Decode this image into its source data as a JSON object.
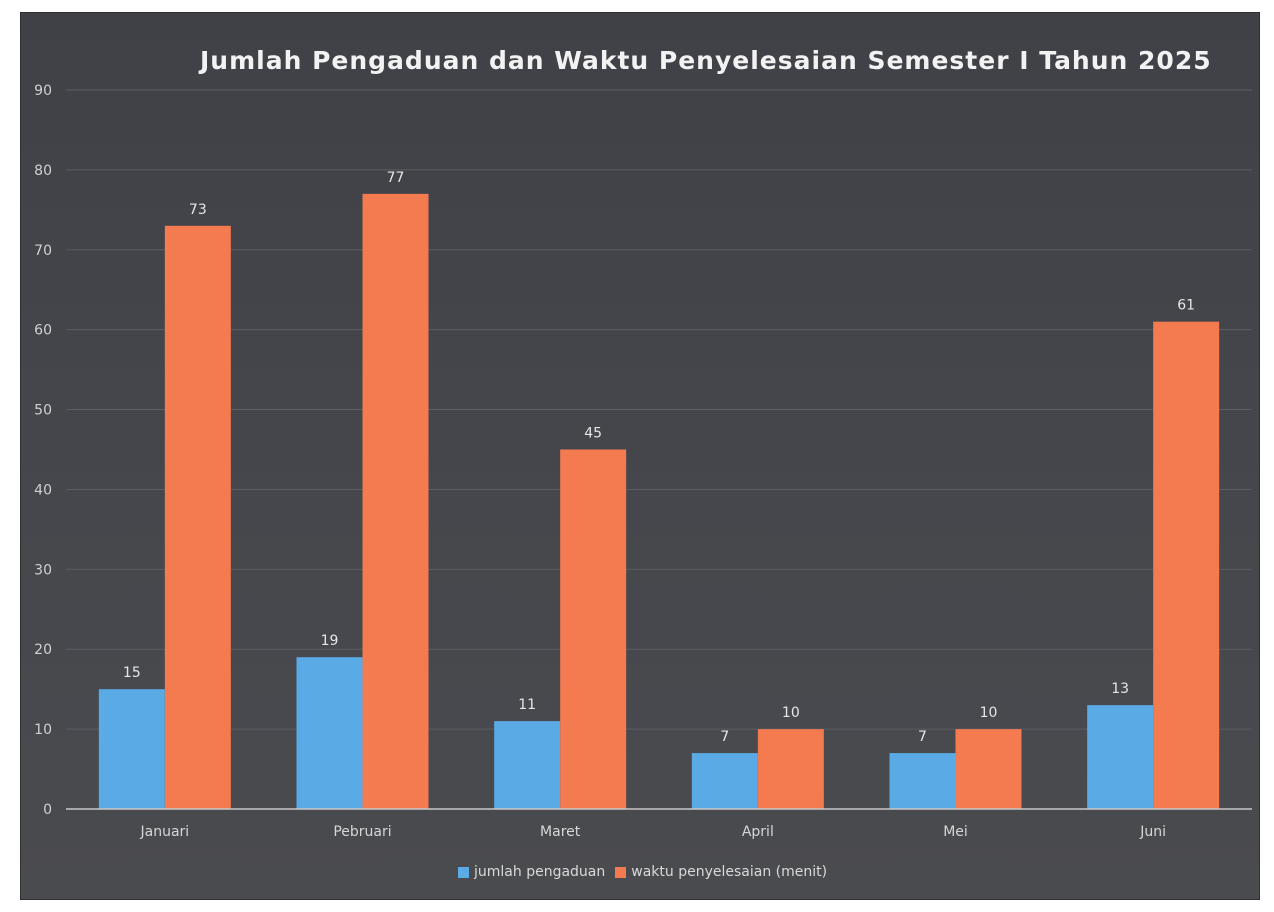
{
  "chart_data": {
    "type": "bar",
    "title": "Jumlah Pengaduan dan Waktu Penyelesaian Semester I Tahun 2025",
    "categories": [
      "Januari",
      "Pebruari",
      "Maret",
      "April",
      "Mei",
      "Juni"
    ],
    "series": [
      {
        "name": "jumlah pengaduan",
        "values": [
          15,
          19,
          11,
          7,
          7,
          13
        ],
        "color": "#5aaae6"
      },
      {
        "name": "waktu penyelesaian (menit)",
        "values": [
          73,
          77,
          45,
          10,
          10,
          61
        ],
        "color": "#f47a50"
      }
    ],
    "ylim": [
      0,
      90
    ],
    "yticks": [
      "0",
      "10",
      "20",
      "30",
      "40",
      "50",
      "60",
      "70",
      "80",
      "90"
    ],
    "grid": true,
    "legend_position": "bottom"
  }
}
